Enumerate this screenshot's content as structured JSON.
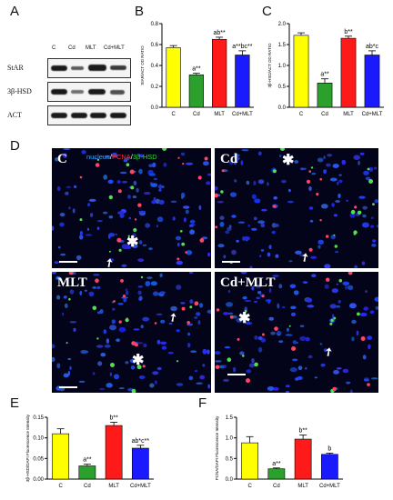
{
  "panels": {
    "A": "A",
    "B": "B",
    "C": "C",
    "D": "D",
    "E": "E",
    "F": "F"
  },
  "blot": {
    "lanes": [
      "C",
      "Cd",
      "MLT",
      "Cd+MLT"
    ],
    "rows": [
      {
        "label": "StAR",
        "intensity": [
          0.9,
          0.45,
          0.95,
          0.6
        ]
      },
      {
        "label": "3β-HSD",
        "intensity": [
          0.85,
          0.4,
          0.85,
          0.55
        ]
      },
      {
        "label": "ACT",
        "intensity": [
          0.8,
          0.8,
          0.8,
          0.8
        ]
      }
    ]
  },
  "colors": {
    "C": "#ffff00",
    "Cd": "#2ca02c",
    "MLT": "#ff1a1a",
    "Cd+MLT": "#1a1aff"
  },
  "chart_data": [
    {
      "id": "B",
      "type": "bar",
      "categories": [
        "C",
        "Cd",
        "MLT",
        "Cd+MLT"
      ],
      "values": [
        0.57,
        0.31,
        0.65,
        0.5
      ],
      "errors": [
        0.02,
        0.015,
        0.02,
        0.04
      ],
      "annotations": [
        "",
        "a**",
        "ab**",
        "a**bc**"
      ],
      "ylabel": "StAR/ACT OD RATIO",
      "ylim": [
        0,
        0.8
      ],
      "yticks": [
        "0.0",
        "0.2",
        "0.4",
        "0.6",
        "0.8"
      ]
    },
    {
      "id": "C",
      "type": "bar",
      "categories": [
        "C",
        "Cd",
        "MLT",
        "Cd+MLT"
      ],
      "values": [
        1.72,
        0.58,
        1.65,
        1.25
      ],
      "errors": [
        0.06,
        0.1,
        0.05,
        0.1
      ],
      "annotations": [
        "",
        "a**",
        "b**",
        "ab*c"
      ],
      "ylabel": "3β-HSD/ACT OD RATIO",
      "ylim": [
        0,
        2.0
      ],
      "yticks": [
        "0.0",
        "0.5",
        "1.0",
        "1.5",
        "2.0"
      ]
    },
    {
      "id": "E",
      "type": "bar",
      "categories": [
        "C",
        "Cd",
        "MLT",
        "Cd+MLT"
      ],
      "values": [
        0.11,
        0.032,
        0.13,
        0.075
      ],
      "errors": [
        0.012,
        0.004,
        0.008,
        0.007
      ],
      "annotations": [
        "",
        "a**",
        "b**",
        "ab*c**"
      ],
      "ylabel": "3β-HSD/DAPI Fluorescence Intensity",
      "ylim": [
        0,
        0.15
      ],
      "yticks": [
        "0.00",
        "0.05",
        "0.10",
        "0.15"
      ]
    },
    {
      "id": "F",
      "type": "bar",
      "categories": [
        "C",
        "Cd",
        "MLT",
        "Cd+MLT"
      ],
      "values": [
        0.88,
        0.25,
        0.97,
        0.6
      ],
      "errors": [
        0.15,
        0.02,
        0.1,
        0.03
      ],
      "annotations": [
        "",
        "a**",
        "b**",
        "b"
      ],
      "ylabel": "PCNA/DAPI Fluorescence Intensity",
      "ylim": [
        0,
        1.5
      ],
      "yticks": [
        "0.0",
        "0.5",
        "1.0",
        "1.5"
      ]
    }
  ],
  "micrographs": {
    "legend_parts": [
      "nucleus",
      "/",
      "PCNA",
      "/",
      "3β-HSD"
    ],
    "legend_colors": [
      "#33aaff",
      "#ffffff",
      "#ff3333",
      "#ffffff",
      "#33dd33"
    ],
    "labels": [
      "C",
      "Cd",
      "MLT",
      "Cd+MLT"
    ]
  }
}
